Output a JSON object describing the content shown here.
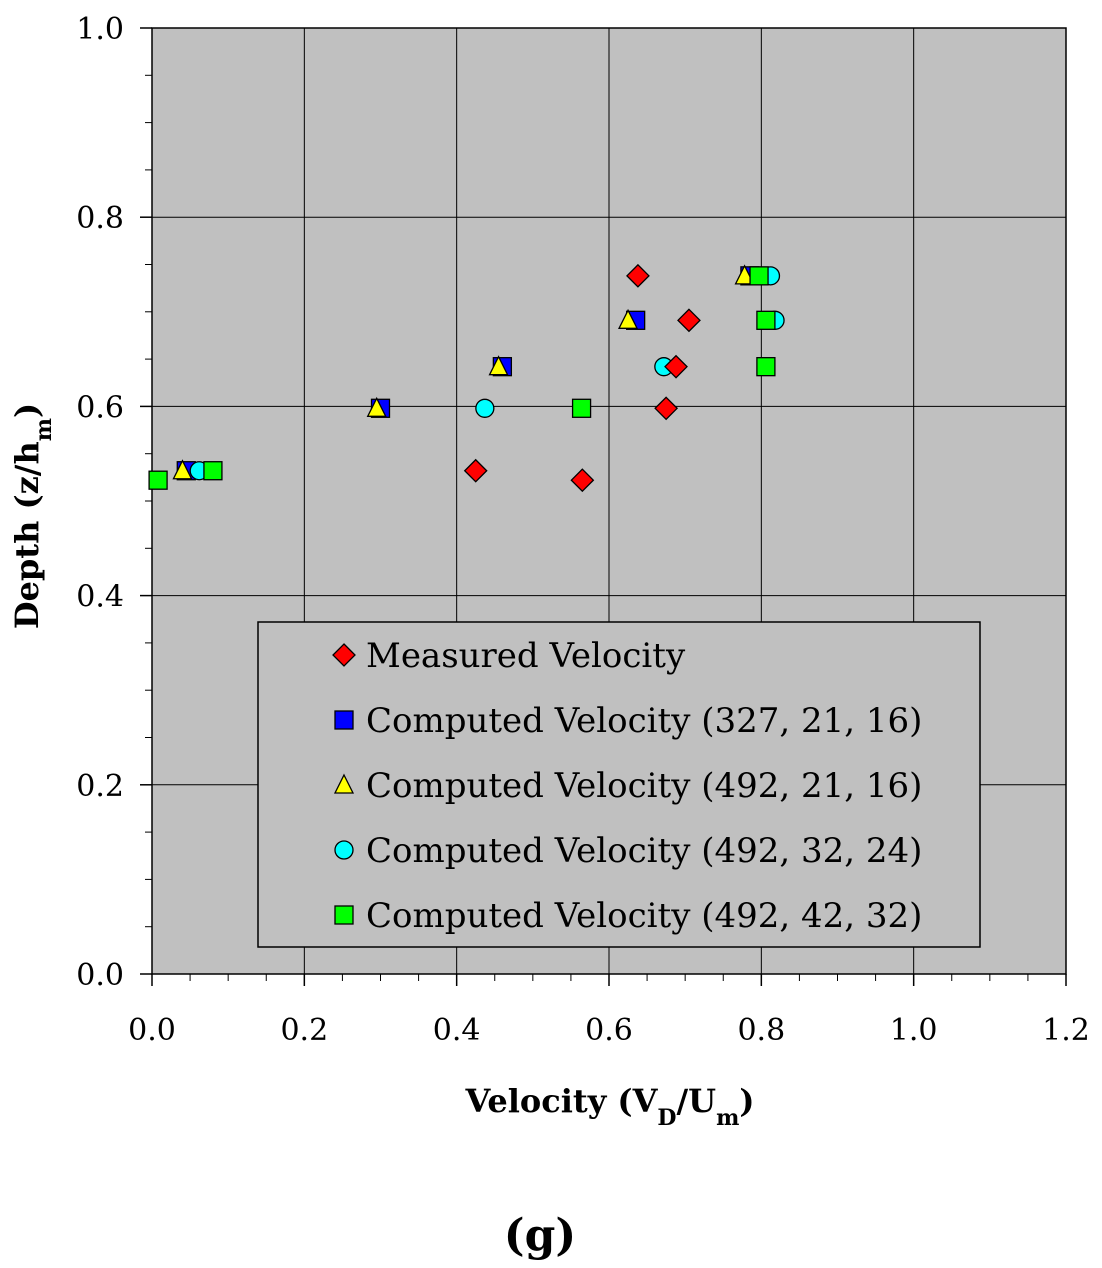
{
  "chart_data": {
    "type": "scatter",
    "xlabel": {
      "main": "Velocity (V",
      "sub1": "D",
      "mid": "/U",
      "sub2": "m",
      "end": ")"
    },
    "ylabel": {
      "main": "Depth (z/h",
      "sub": "m",
      "end": ")"
    },
    "xlim": [
      0,
      1.2
    ],
    "ylim": [
      0,
      1.0
    ],
    "x_ticks": [
      "0.0",
      "0.2",
      "0.4",
      "0.6",
      "0.8",
      "1.0",
      "1.2"
    ],
    "y_ticks": [
      "0.0",
      "0.2",
      "0.4",
      "0.6",
      "0.8",
      "1.0"
    ],
    "grid": true,
    "legend_position": "lower-center",
    "series": [
      {
        "name": "Measured Velocity",
        "marker": "diamond",
        "color": "#ff0000",
        "points": [
          [
            0.425,
            0.532
          ],
          [
            0.565,
            0.522
          ],
          [
            0.675,
            0.598
          ],
          [
            0.688,
            0.642
          ],
          [
            0.705,
            0.691
          ],
          [
            0.638,
            0.738
          ]
        ]
      },
      {
        "name": "Computed Velocity (327, 21, 16)",
        "marker": "square",
        "color": "#0000ff",
        "points": [
          [
            0.045,
            0.532
          ],
          [
            0.3,
            0.598
          ],
          [
            0.46,
            0.642
          ],
          [
            0.635,
            0.691
          ],
          [
            0.785,
            0.738
          ]
        ]
      },
      {
        "name": "Computed Velocity (492, 21, 16)",
        "marker": "triangle",
        "color": "#ffff00",
        "points": [
          [
            0.04,
            0.532
          ],
          [
            0.295,
            0.598
          ],
          [
            0.455,
            0.642
          ],
          [
            0.625,
            0.691
          ],
          [
            0.778,
            0.738
          ]
        ]
      },
      {
        "name": "Computed Velocity (492, 32, 24)",
        "marker": "circle",
        "color": "#00ffff",
        "points": [
          [
            0.062,
            0.532
          ],
          [
            0.437,
            0.598
          ],
          [
            0.672,
            0.642
          ],
          [
            0.818,
            0.691
          ],
          [
            0.812,
            0.738
          ]
        ]
      },
      {
        "name": "Computed Velocity (492, 42, 32)",
        "marker": "square",
        "color": "#00ff00",
        "points": [
          [
            0.008,
            0.522
          ],
          [
            0.08,
            0.532
          ],
          [
            0.564,
            0.598
          ],
          [
            0.806,
            0.642
          ],
          [
            0.806,
            0.691
          ],
          [
            0.797,
            0.738
          ]
        ]
      }
    ],
    "panel_label": "(g)"
  }
}
